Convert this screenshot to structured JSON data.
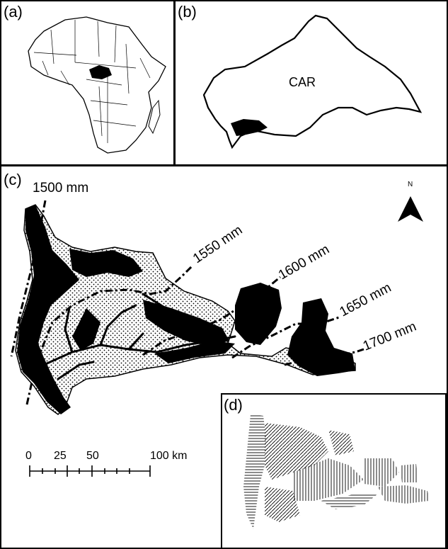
{
  "panels": {
    "a": {
      "label": "(a)"
    },
    "b": {
      "label": "(b)",
      "region_label": "CAR"
    },
    "c": {
      "label": "(c)",
      "isohyets": [
        "1500 mm",
        "1550 mm",
        "1600 mm",
        "1650 mm",
        "1700 mm"
      ],
      "north_label": "N",
      "scale_bar": {
        "ticks": [
          "0",
          "25",
          "50",
          "100 km"
        ]
      }
    },
    "d": {
      "label": "(d)"
    }
  },
  "colors": {
    "ink": "#000000",
    "paper": "#ffffff",
    "forest": "#000000",
    "savanna_dots": "#000000"
  }
}
